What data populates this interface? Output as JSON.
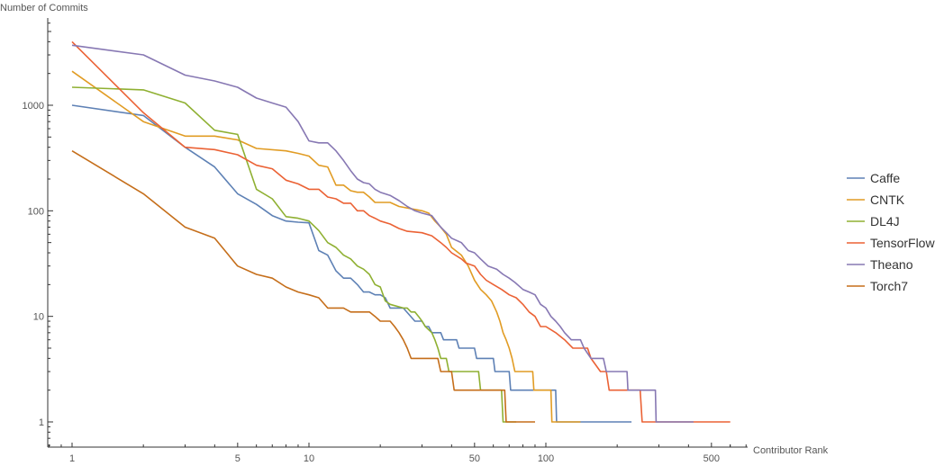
{
  "chart_data": {
    "type": "line",
    "title": "",
    "xlabel": "Contributor Rank",
    "ylabel": "Number of Commits",
    "xscale": "log",
    "yscale": "log",
    "xlim": [
      0.78,
      700
    ],
    "ylim": [
      0.7,
      9000
    ],
    "grid": false,
    "legend_position": "right",
    "x_ticks": [
      1,
      5,
      10,
      50,
      100,
      500
    ],
    "x_tick_labels": [
      "1",
      "5",
      "10",
      "50",
      "100",
      "500"
    ],
    "y_ticks": [
      1,
      10,
      100,
      1000
    ],
    "y_tick_labels": [
      "1",
      "10",
      "100",
      "1000"
    ],
    "series": [
      {
        "name": "Caffe",
        "color": "#5e81b5",
        "points": [
          [
            1,
            1000
          ],
          [
            2,
            800
          ],
          [
            3,
            400
          ],
          [
            4,
            260
          ],
          [
            5,
            145
          ],
          [
            6,
            115
          ],
          [
            7,
            90
          ],
          [
            8,
            80
          ],
          [
            9,
            78
          ],
          [
            10,
            77
          ],
          [
            11,
            42
          ],
          [
            12,
            38
          ],
          [
            13,
            27
          ],
          [
            14,
            23
          ],
          [
            15,
            23
          ],
          [
            16,
            20
          ],
          [
            17,
            17
          ],
          [
            18,
            17
          ],
          [
            19,
            16
          ],
          [
            20,
            16
          ],
          [
            21,
            15
          ],
          [
            22,
            12
          ],
          [
            25,
            12
          ],
          [
            28,
            9
          ],
          [
            30,
            9
          ],
          [
            31,
            8
          ],
          [
            32,
            8
          ],
          [
            33,
            7
          ],
          [
            36,
            7
          ],
          [
            37,
            6
          ],
          [
            42,
            6
          ],
          [
            43,
            5
          ],
          [
            50,
            5
          ],
          [
            51,
            4
          ],
          [
            60,
            4
          ],
          [
            61,
            3
          ],
          [
            70,
            3
          ],
          [
            71,
            2
          ],
          [
            110,
            2
          ],
          [
            111,
            1
          ],
          [
            230,
            1
          ]
        ]
      },
      {
        "name": "CNTK",
        "color": "#e19c24",
        "points": [
          [
            1,
            2100
          ],
          [
            2,
            700
          ],
          [
            3,
            510
          ],
          [
            4,
            510
          ],
          [
            5,
            470
          ],
          [
            6,
            390
          ],
          [
            8,
            370
          ],
          [
            9,
            350
          ],
          [
            10,
            330
          ],
          [
            11,
            270
          ],
          [
            12,
            260
          ],
          [
            13,
            175
          ],
          [
            14,
            175
          ],
          [
            15,
            155
          ],
          [
            16,
            150
          ],
          [
            17,
            150
          ],
          [
            18,
            135
          ],
          [
            19,
            120
          ],
          [
            22,
            120
          ],
          [
            24,
            110
          ],
          [
            28,
            103
          ],
          [
            30,
            100
          ],
          [
            32,
            95
          ],
          [
            34,
            80
          ],
          [
            36,
            70
          ],
          [
            38,
            60
          ],
          [
            40,
            45
          ],
          [
            44,
            38
          ],
          [
            47,
            30
          ],
          [
            50,
            22
          ],
          [
            53,
            18
          ],
          [
            56,
            16
          ],
          [
            59,
            14
          ],
          [
            62,
            11
          ],
          [
            64,
            9
          ],
          [
            66,
            7
          ],
          [
            68,
            6
          ],
          [
            70,
            5
          ],
          [
            72,
            4
          ],
          [
            74,
            3
          ],
          [
            88,
            3
          ],
          [
            89,
            2
          ],
          [
            105,
            2
          ],
          [
            106,
            1
          ],
          [
            140,
            1
          ]
        ]
      },
      {
        "name": "DL4J",
        "color": "#8fb032",
        "points": [
          [
            1,
            1480
          ],
          [
            2,
            1400
          ],
          [
            3,
            1050
          ],
          [
            4,
            580
          ],
          [
            5,
            530
          ],
          [
            6,
            160
          ],
          [
            7,
            130
          ],
          [
            8,
            88
          ],
          [
            9,
            85
          ],
          [
            10,
            80
          ],
          [
            11,
            65
          ],
          [
            12,
            50
          ],
          [
            13,
            45
          ],
          [
            14,
            38
          ],
          [
            15,
            35
          ],
          [
            16,
            30
          ],
          [
            17,
            28
          ],
          [
            18,
            25
          ],
          [
            19,
            20
          ],
          [
            20,
            19
          ],
          [
            21,
            14
          ],
          [
            22,
            13
          ],
          [
            25,
            12
          ],
          [
            26,
            12
          ],
          [
            27,
            11
          ],
          [
            28,
            11
          ],
          [
            29,
            10
          ],
          [
            30,
            9
          ],
          [
            31,
            8
          ],
          [
            33,
            7
          ],
          [
            34,
            6
          ],
          [
            35,
            5
          ],
          [
            36,
            4
          ],
          [
            38,
            4
          ],
          [
            39,
            3
          ],
          [
            52,
            3
          ],
          [
            53,
            2
          ],
          [
            65,
            2
          ],
          [
            66,
            1
          ],
          [
            75,
            1
          ]
        ]
      },
      {
        "name": "TensorFlow",
        "color": "#eb6235",
        "points": [
          [
            1,
            4000
          ],
          [
            2,
            850
          ],
          [
            3,
            400
          ],
          [
            4,
            380
          ],
          [
            5,
            340
          ],
          [
            6,
            270
          ],
          [
            7,
            250
          ],
          [
            8,
            195
          ],
          [
            9,
            180
          ],
          [
            10,
            160
          ],
          [
            11,
            160
          ],
          [
            12,
            135
          ],
          [
            13,
            130
          ],
          [
            14,
            118
          ],
          [
            15,
            118
          ],
          [
            16,
            100
          ],
          [
            17,
            100
          ],
          [
            18,
            90
          ],
          [
            19,
            85
          ],
          [
            20,
            80
          ],
          [
            22,
            75
          ],
          [
            24,
            68
          ],
          [
            26,
            64
          ],
          [
            30,
            62
          ],
          [
            33,
            58
          ],
          [
            36,
            50
          ],
          [
            38,
            45
          ],
          [
            40,
            40
          ],
          [
            44,
            35
          ],
          [
            46,
            32
          ],
          [
            50,
            30
          ],
          [
            53,
            25
          ],
          [
            56,
            22
          ],
          [
            60,
            20
          ],
          [
            65,
            18
          ],
          [
            70,
            16
          ],
          [
            75,
            15
          ],
          [
            80,
            13
          ],
          [
            85,
            11
          ],
          [
            90,
            10
          ],
          [
            95,
            8
          ],
          [
            100,
            8
          ],
          [
            110,
            7
          ],
          [
            120,
            6
          ],
          [
            130,
            5
          ],
          [
            150,
            5
          ],
          [
            155,
            4
          ],
          [
            170,
            3
          ],
          [
            180,
            3
          ],
          [
            185,
            2
          ],
          [
            250,
            2
          ],
          [
            255,
            1
          ],
          [
            600,
            1
          ]
        ]
      },
      {
        "name": "Theano",
        "color": "#8778b3",
        "points": [
          [
            1,
            3700
          ],
          [
            2,
            3000
          ],
          [
            3,
            1930
          ],
          [
            4,
            1700
          ],
          [
            5,
            1480
          ],
          [
            6,
            1170
          ],
          [
            7,
            1050
          ],
          [
            8,
            960
          ],
          [
            9,
            700
          ],
          [
            10,
            460
          ],
          [
            11,
            440
          ],
          [
            12,
            440
          ],
          [
            13,
            370
          ],
          [
            14,
            300
          ],
          [
            15,
            240
          ],
          [
            16,
            200
          ],
          [
            17,
            185
          ],
          [
            18,
            180
          ],
          [
            19,
            160
          ],
          [
            20,
            150
          ],
          [
            22,
            140
          ],
          [
            24,
            125
          ],
          [
            26,
            110
          ],
          [
            28,
            100
          ],
          [
            30,
            95
          ],
          [
            33,
            90
          ],
          [
            36,
            70
          ],
          [
            38,
            62
          ],
          [
            40,
            55
          ],
          [
            44,
            50
          ],
          [
            47,
            42
          ],
          [
            50,
            40
          ],
          [
            53,
            35
          ],
          [
            57,
            30
          ],
          [
            62,
            28
          ],
          [
            66,
            25
          ],
          [
            70,
            23
          ],
          [
            74,
            21
          ],
          [
            80,
            18
          ],
          [
            85,
            17
          ],
          [
            90,
            16
          ],
          [
            95,
            13
          ],
          [
            100,
            12
          ],
          [
            105,
            10
          ],
          [
            110,
            9
          ],
          [
            115,
            8
          ],
          [
            120,
            7
          ],
          [
            128,
            6
          ],
          [
            140,
            6
          ],
          [
            145,
            5
          ],
          [
            155,
            4
          ],
          [
            175,
            4
          ],
          [
            180,
            3
          ],
          [
            220,
            3
          ],
          [
            222,
            2
          ],
          [
            290,
            2
          ],
          [
            292,
            1
          ],
          [
            420,
            1
          ]
        ]
      },
      {
        "name": "Torch7",
        "color": "#c56e1a",
        "points": [
          [
            1,
            370
          ],
          [
            2,
            145
          ],
          [
            3,
            70
          ],
          [
            4,
            55
          ],
          [
            5,
            30
          ],
          [
            6,
            25
          ],
          [
            7,
            23
          ],
          [
            8,
            19
          ],
          [
            9,
            17
          ],
          [
            10,
            16
          ],
          [
            11,
            15
          ],
          [
            12,
            12
          ],
          [
            14,
            12
          ],
          [
            15,
            11
          ],
          [
            18,
            11
          ],
          [
            19,
            10
          ],
          [
            20,
            9
          ],
          [
            22,
            9
          ],
          [
            23,
            8
          ],
          [
            24,
            7
          ],
          [
            25,
            6
          ],
          [
            26,
            5
          ],
          [
            27,
            4
          ],
          [
            35,
            4
          ],
          [
            36,
            3
          ],
          [
            40,
            3
          ],
          [
            41,
            2
          ],
          [
            67,
            2
          ],
          [
            68,
            1
          ],
          [
            90,
            1
          ]
        ]
      }
    ]
  }
}
